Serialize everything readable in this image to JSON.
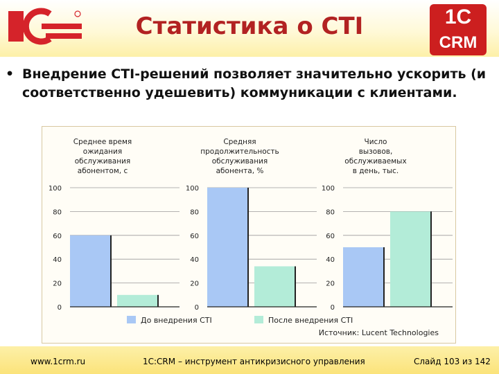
{
  "header": {
    "title": "Статистика о CTI",
    "logo_left": "1C",
    "badge_top": "1C",
    "badge_bottom": "CRM"
  },
  "bullet": {
    "symbol": "•",
    "text": "Внедрение CTI-решений позволяет значительно ускорить (и соответственно удешевить) коммуникации с клиентами."
  },
  "chart_data": {
    "type": "bar",
    "series": [
      {
        "name": "До внедрения CTI",
        "color": "#a9c8f5"
      },
      {
        "name": "После внедрения CTI",
        "color": "#b3ecd8"
      }
    ],
    "panels": [
      {
        "title": [
          "Среднее время",
          "ожидания",
          "обслуживания",
          "абонентом, с"
        ],
        "values": [
          60,
          10
        ],
        "ylim": [
          0,
          100
        ],
        "yticks": [
          0,
          20,
          40,
          60,
          80,
          100
        ]
      },
      {
        "title": [
          "Средняя",
          "продолжительность",
          "обслуживания",
          "абонента, %"
        ],
        "values": [
          100,
          34
        ],
        "ylim": [
          0,
          100
        ],
        "yticks": [
          0,
          20,
          40,
          60,
          80,
          100
        ]
      },
      {
        "title": [
          "Число",
          "вызовов,",
          "обслуживаемых",
          "в день, тыс."
        ],
        "values": [
          50,
          80
        ],
        "ylim": [
          0,
          100
        ],
        "yticks": [
          0,
          20,
          40,
          60,
          80,
          100
        ]
      }
    ],
    "source": "Источник: Lucent Technologies",
    "grid": true,
    "legend_position": "bottom"
  },
  "colors": {
    "title": "#b22222",
    "brand_red": "#cc1f1f",
    "axis": "#222222"
  },
  "footer": {
    "url": "www.1crm.ru",
    "tagline": "1С:CRM – инструмент антикризисного управления",
    "slide": "Слайд 103 из 142"
  }
}
